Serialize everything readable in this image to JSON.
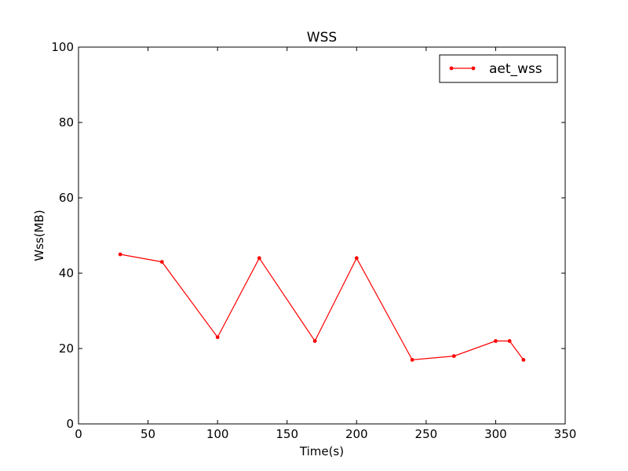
{
  "chart_data": {
    "type": "line",
    "title": "WSS",
    "xlabel": "Time(s)",
    "ylabel": "Wss(MB)",
    "xlim": [
      0,
      350
    ],
    "ylim": [
      0,
      100
    ],
    "xticks": [
      0,
      50,
      100,
      150,
      200,
      250,
      300,
      350
    ],
    "yticks": [
      0,
      20,
      40,
      60,
      80,
      100
    ],
    "grid": false,
    "legend_position": "top-right",
    "series": [
      {
        "name": "aet_wss",
        "color": "#ff0000",
        "marker": "dot",
        "x": [
          30,
          60,
          100,
          130,
          170,
          200,
          240,
          270,
          300,
          310,
          320
        ],
        "y": [
          45,
          43,
          23,
          44,
          22,
          44,
          17,
          18,
          22,
          22,
          17
        ]
      }
    ]
  }
}
